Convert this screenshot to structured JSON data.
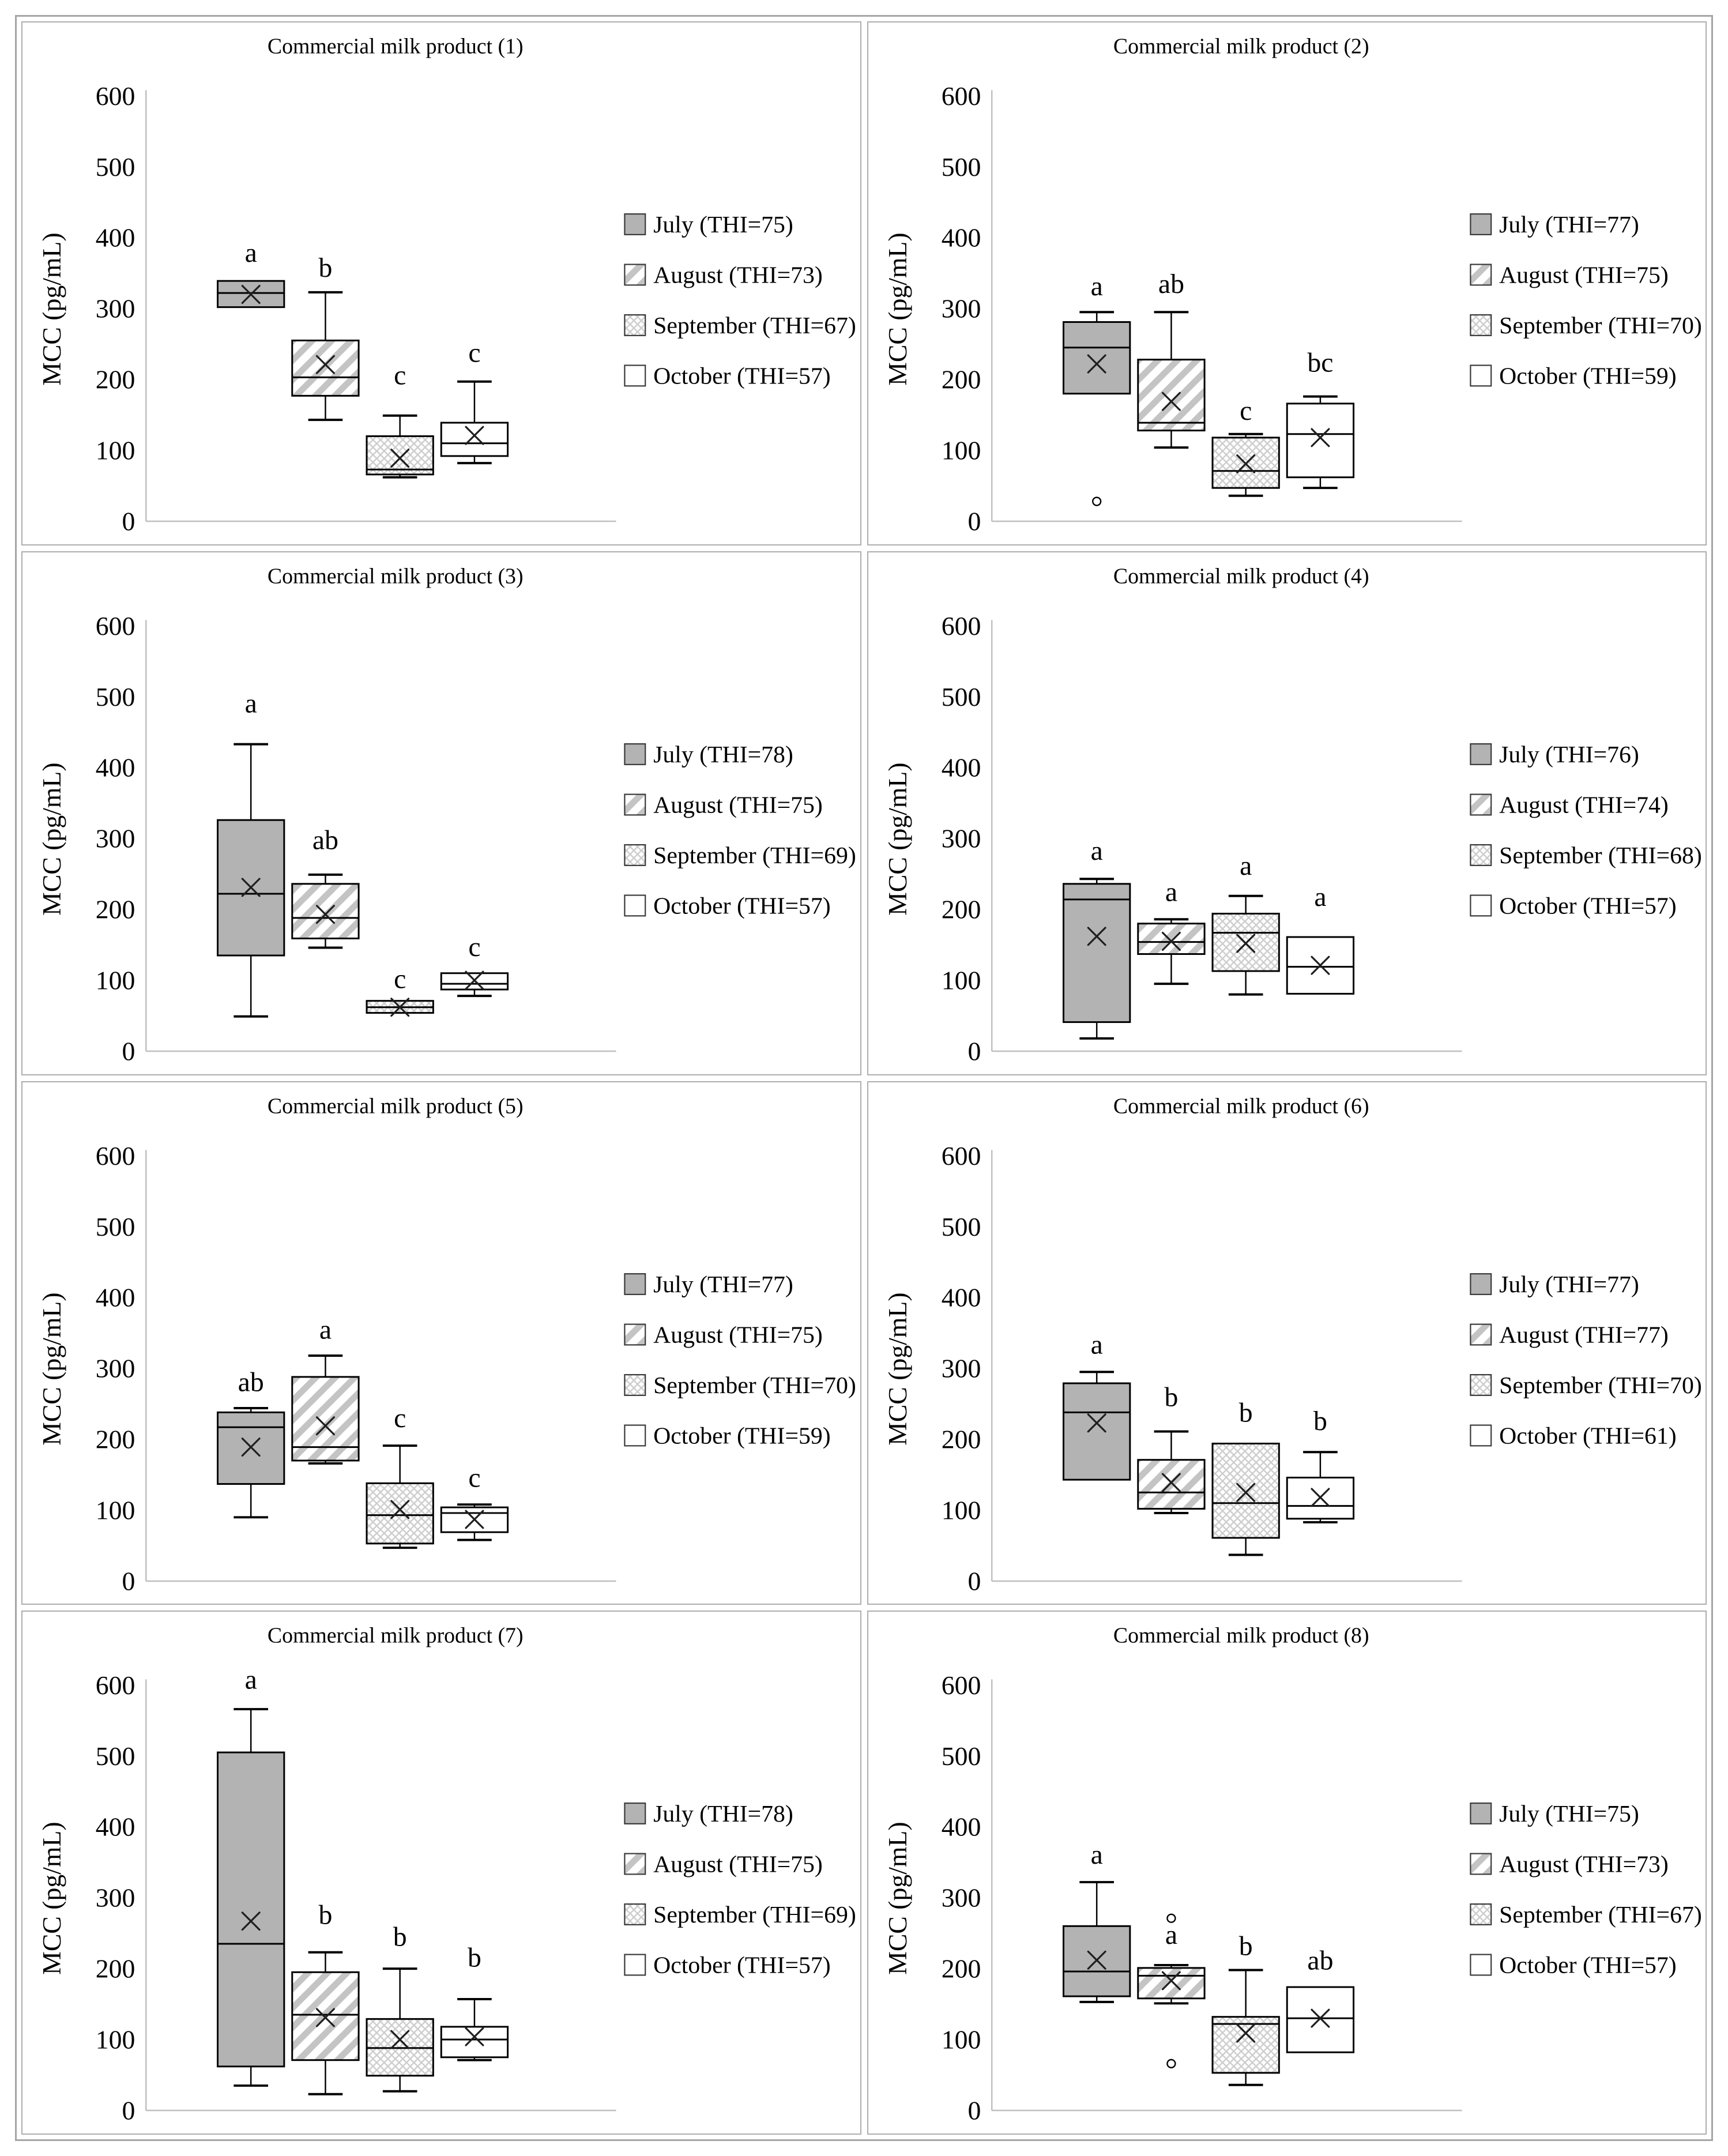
{
  "figure": {
    "y_axis_label": "MCC (pg/mL)",
    "y_ticks": [
      0,
      100,
      200,
      300,
      400,
      500,
      600
    ],
    "y_max": 600,
    "months": [
      "July",
      "August",
      "September",
      "October"
    ],
    "patterns": {
      "July": "solid-gray",
      "August": "diagonal-stripes",
      "September": "diamond-hatch",
      "October": "white"
    },
    "colors": {
      "july_fill": "#b3b3b3",
      "stripe_gray": "#c4c4c4",
      "hatch_gray": "#cdcdcd",
      "box_border": "#000000",
      "axis_gray": "#bfbfbf",
      "panel_border": "#a6a6a6"
    }
  },
  "chart_data": [
    {
      "type": "box",
      "title": "Commercial milk product (1)",
      "ylabel": "MCC (pg/mL)",
      "ylim": [
        0,
        600
      ],
      "grid": false,
      "legend_position": "right",
      "legend": [
        "July (THI=75)",
        "August (THI=73)",
        "September (THI=67)",
        "October (THI=57)"
      ],
      "boxes": [
        {
          "month": "July",
          "letter": "a",
          "letter_y": 366,
          "whislo": 302,
          "q1": 302,
          "med": 322,
          "q3": 339,
          "whishi": 339,
          "mean": 320,
          "outliers": []
        },
        {
          "month": "August",
          "letter": "b",
          "letter_y": 345,
          "whislo": 143,
          "q1": 177,
          "med": 203,
          "q3": 255,
          "whishi": 323,
          "mean": 221,
          "outliers": []
        },
        {
          "month": "September",
          "letter": "c",
          "letter_y": 193,
          "whislo": 62,
          "q1": 66,
          "med": 73,
          "q3": 120,
          "whishi": 149,
          "mean": 89,
          "outliers": []
        },
        {
          "month": "October",
          "letter": "c",
          "letter_y": 225,
          "whislo": 82,
          "q1": 92,
          "med": 110,
          "q3": 139,
          "whishi": 197,
          "mean": 121,
          "outliers": []
        }
      ]
    },
    {
      "type": "box",
      "title": "Commercial milk product (2)",
      "ylabel": "MCC (pg/mL)",
      "ylim": [
        0,
        600
      ],
      "grid": false,
      "legend_position": "right",
      "legend": [
        "July (THI=77)",
        "August (THI=75)",
        "September (THI=70)",
        "October (THI=59)"
      ],
      "boxes": [
        {
          "month": "July",
          "letter": "a",
          "letter_y": 319,
          "whislo": 180,
          "q1": 180,
          "med": 245,
          "q3": 281,
          "whishi": 295,
          "mean": 222,
          "outliers": [
            28
          ]
        },
        {
          "month": "August",
          "letter": "ab",
          "letter_y": 322,
          "whislo": 104,
          "q1": 128,
          "med": 139,
          "q3": 228,
          "whishi": 295,
          "mean": 169,
          "outliers": []
        },
        {
          "month": "September",
          "letter": "c",
          "letter_y": 143,
          "whislo": 36,
          "q1": 47,
          "med": 71,
          "q3": 118,
          "whishi": 123,
          "mean": 81,
          "outliers": []
        },
        {
          "month": "October",
          "letter": "bc",
          "letter_y": 211,
          "whislo": 47,
          "q1": 62,
          "med": 123,
          "q3": 166,
          "whishi": 176,
          "mean": 118,
          "outliers": []
        }
      ]
    },
    {
      "type": "box",
      "title": "Commercial milk product (3)",
      "ylabel": "MCC (pg/mL)",
      "ylim": [
        0,
        600
      ],
      "grid": false,
      "legend_position": "right",
      "legend": [
        "July (THI=78)",
        "August (THI=75)",
        "September (THI=69)",
        "October (THI=57)"
      ],
      "boxes": [
        {
          "month": "July",
          "letter": "a",
          "letter_y": 478,
          "whislo": 49,
          "q1": 135,
          "med": 222,
          "q3": 326,
          "whishi": 433,
          "mean": 231,
          "outliers": []
        },
        {
          "month": "August",
          "letter": "ab",
          "letter_y": 285,
          "whislo": 146,
          "q1": 159,
          "med": 188,
          "q3": 236,
          "whishi": 249,
          "mean": 193,
          "outliers": []
        },
        {
          "month": "September",
          "letter": "c",
          "letter_y": 89,
          "whislo": 54,
          "q1": 54,
          "med": 62,
          "q3": 71,
          "whishi": 71,
          "mean": 62,
          "outliers": []
        },
        {
          "month": "October",
          "letter": "c",
          "letter_y": 134,
          "whislo": 78,
          "q1": 87,
          "med": 95,
          "q3": 110,
          "whishi": 110,
          "mean": 100,
          "outliers": []
        }
      ]
    },
    {
      "type": "box",
      "title": "Commercial milk product (4)",
      "ylabel": "MCC (pg/mL)",
      "ylim": [
        0,
        600
      ],
      "grid": false,
      "legend_position": "right",
      "legend": [
        "July (THI=76)",
        "August (THI=74)",
        "September (THI=68)",
        "October (THI=57)"
      ],
      "boxes": [
        {
          "month": "July",
          "letter": "a",
          "letter_y": 270,
          "whislo": 18,
          "q1": 41,
          "med": 214,
          "q3": 236,
          "whishi": 243,
          "mean": 162,
          "outliers": []
        },
        {
          "month": "August",
          "letter": "a",
          "letter_y": 212,
          "whislo": 95,
          "q1": 137,
          "med": 154,
          "q3": 180,
          "whishi": 186,
          "mean": 155,
          "outliers": []
        },
        {
          "month": "September",
          "letter": "a",
          "letter_y": 249,
          "whislo": 80,
          "q1": 113,
          "med": 167,
          "q3": 194,
          "whishi": 219,
          "mean": 152,
          "outliers": []
        },
        {
          "month": "October",
          "letter": "a",
          "letter_y": 205,
          "whislo": 81,
          "q1": 81,
          "med": 119,
          "q3": 161,
          "whishi": 161,
          "mean": 121,
          "outliers": []
        }
      ]
    },
    {
      "type": "box",
      "title": "Commercial milk product (5)",
      "ylabel": "MCC (pg/mL)",
      "ylim": [
        0,
        600
      ],
      "grid": false,
      "legend_position": "right",
      "legend": [
        "July (THI=77)",
        "August (THI=75)",
        "September (THI=70)",
        "October (THI=59)"
      ],
      "boxes": [
        {
          "month": "July",
          "letter": "ab",
          "letter_y": 268,
          "whislo": 90,
          "q1": 137,
          "med": 217,
          "q3": 238,
          "whishi": 244,
          "mean": 189,
          "outliers": []
        },
        {
          "month": "August",
          "letter": "a",
          "letter_y": 342,
          "whislo": 166,
          "q1": 170,
          "med": 189,
          "q3": 288,
          "whishi": 318,
          "mean": 219,
          "outliers": []
        },
        {
          "month": "September",
          "letter": "c",
          "letter_y": 217,
          "whislo": 47,
          "q1": 53,
          "med": 93,
          "q3": 138,
          "whishi": 191,
          "mean": 101,
          "outliers": []
        },
        {
          "month": "October",
          "letter": "c",
          "letter_y": 133,
          "whislo": 58,
          "q1": 69,
          "med": 96,
          "q3": 104,
          "whishi": 108,
          "mean": 87,
          "outliers": []
        }
      ]
    },
    {
      "type": "box",
      "title": "Commercial milk product (6)",
      "ylabel": "MCC (pg/mL)",
      "ylim": [
        0,
        600
      ],
      "grid": false,
      "legend_position": "right",
      "legend": [
        "July (THI=77)",
        "August (THI=77)",
        "September (THI=70)",
        "October (THI=61)"
      ],
      "boxes": [
        {
          "month": "July",
          "letter": "a",
          "letter_y": 321,
          "whislo": 143,
          "q1": 143,
          "med": 238,
          "q3": 279,
          "whishi": 295,
          "mean": 223,
          "outliers": []
        },
        {
          "month": "August",
          "letter": "b",
          "letter_y": 247,
          "whislo": 96,
          "q1": 102,
          "med": 125,
          "q3": 171,
          "whishi": 211,
          "mean": 139,
          "outliers": []
        },
        {
          "month": "September",
          "letter": "b",
          "letter_y": 225,
          "whislo": 37,
          "q1": 61,
          "med": 110,
          "q3": 194,
          "whishi": 194,
          "mean": 125,
          "outliers": []
        },
        {
          "month": "October",
          "letter": "b",
          "letter_y": 213,
          "whislo": 83,
          "q1": 88,
          "med": 106,
          "q3": 146,
          "whishi": 182,
          "mean": 118,
          "outliers": []
        }
      ]
    },
    {
      "type": "box",
      "title": "Commercial milk product (7)",
      "ylabel": "MCC (pg/mL)",
      "ylim": [
        0,
        600
      ],
      "grid": false,
      "legend_position": "right",
      "legend": [
        "July (THI=78)",
        "August (THI=75)",
        "September (THI=69)",
        "October (THI=57)"
      ],
      "boxes": [
        {
          "month": "July",
          "letter": "a",
          "letter_y": 595,
          "whislo": 35,
          "q1": 62,
          "med": 235,
          "q3": 505,
          "whishi": 566,
          "mean": 267,
          "outliers": []
        },
        {
          "month": "August",
          "letter": "b",
          "letter_y": 263,
          "whislo": 23,
          "q1": 71,
          "med": 135,
          "q3": 195,
          "whishi": 223,
          "mean": 131,
          "outliers": []
        },
        {
          "month": "September",
          "letter": "b",
          "letter_y": 232,
          "whislo": 27,
          "q1": 49,
          "med": 88,
          "q3": 129,
          "whishi": 200,
          "mean": 100,
          "outliers": []
        },
        {
          "month": "October",
          "letter": "b",
          "letter_y": 203,
          "whislo": 71,
          "q1": 75,
          "med": 100,
          "q3": 118,
          "whishi": 157,
          "mean": 104,
          "outliers": []
        }
      ]
    },
    {
      "type": "box",
      "title": "Commercial milk product (8)",
      "ylabel": "MCC (pg/mL)",
      "ylim": [
        0,
        600
      ],
      "grid": false,
      "legend_position": "right",
      "legend": [
        "July (THI=75)",
        "August (THI=73)",
        "September (THI=67)",
        "October (THI=57)"
      ],
      "boxes": [
        {
          "month": "July",
          "letter": "a",
          "letter_y": 348,
          "whislo": 153,
          "q1": 161,
          "med": 196,
          "q3": 260,
          "whishi": 322,
          "mean": 212,
          "outliers": []
        },
        {
          "month": "August",
          "letter": "a",
          "letter_y": 235,
          "whislo": 151,
          "q1": 158,
          "med": 190,
          "q3": 201,
          "whishi": 205,
          "mean": 183,
          "outliers": [
            271,
            66
          ]
        },
        {
          "month": "September",
          "letter": "b",
          "letter_y": 219,
          "whislo": 36,
          "q1": 53,
          "med": 122,
          "q3": 132,
          "whishi": 198,
          "mean": 109,
          "outliers": []
        },
        {
          "month": "October",
          "letter": "ab",
          "letter_y": 199,
          "whislo": 82,
          "q1": 82,
          "med": 130,
          "q3": 174,
          "whishi": 174,
          "mean": 130,
          "outliers": []
        }
      ]
    }
  ]
}
